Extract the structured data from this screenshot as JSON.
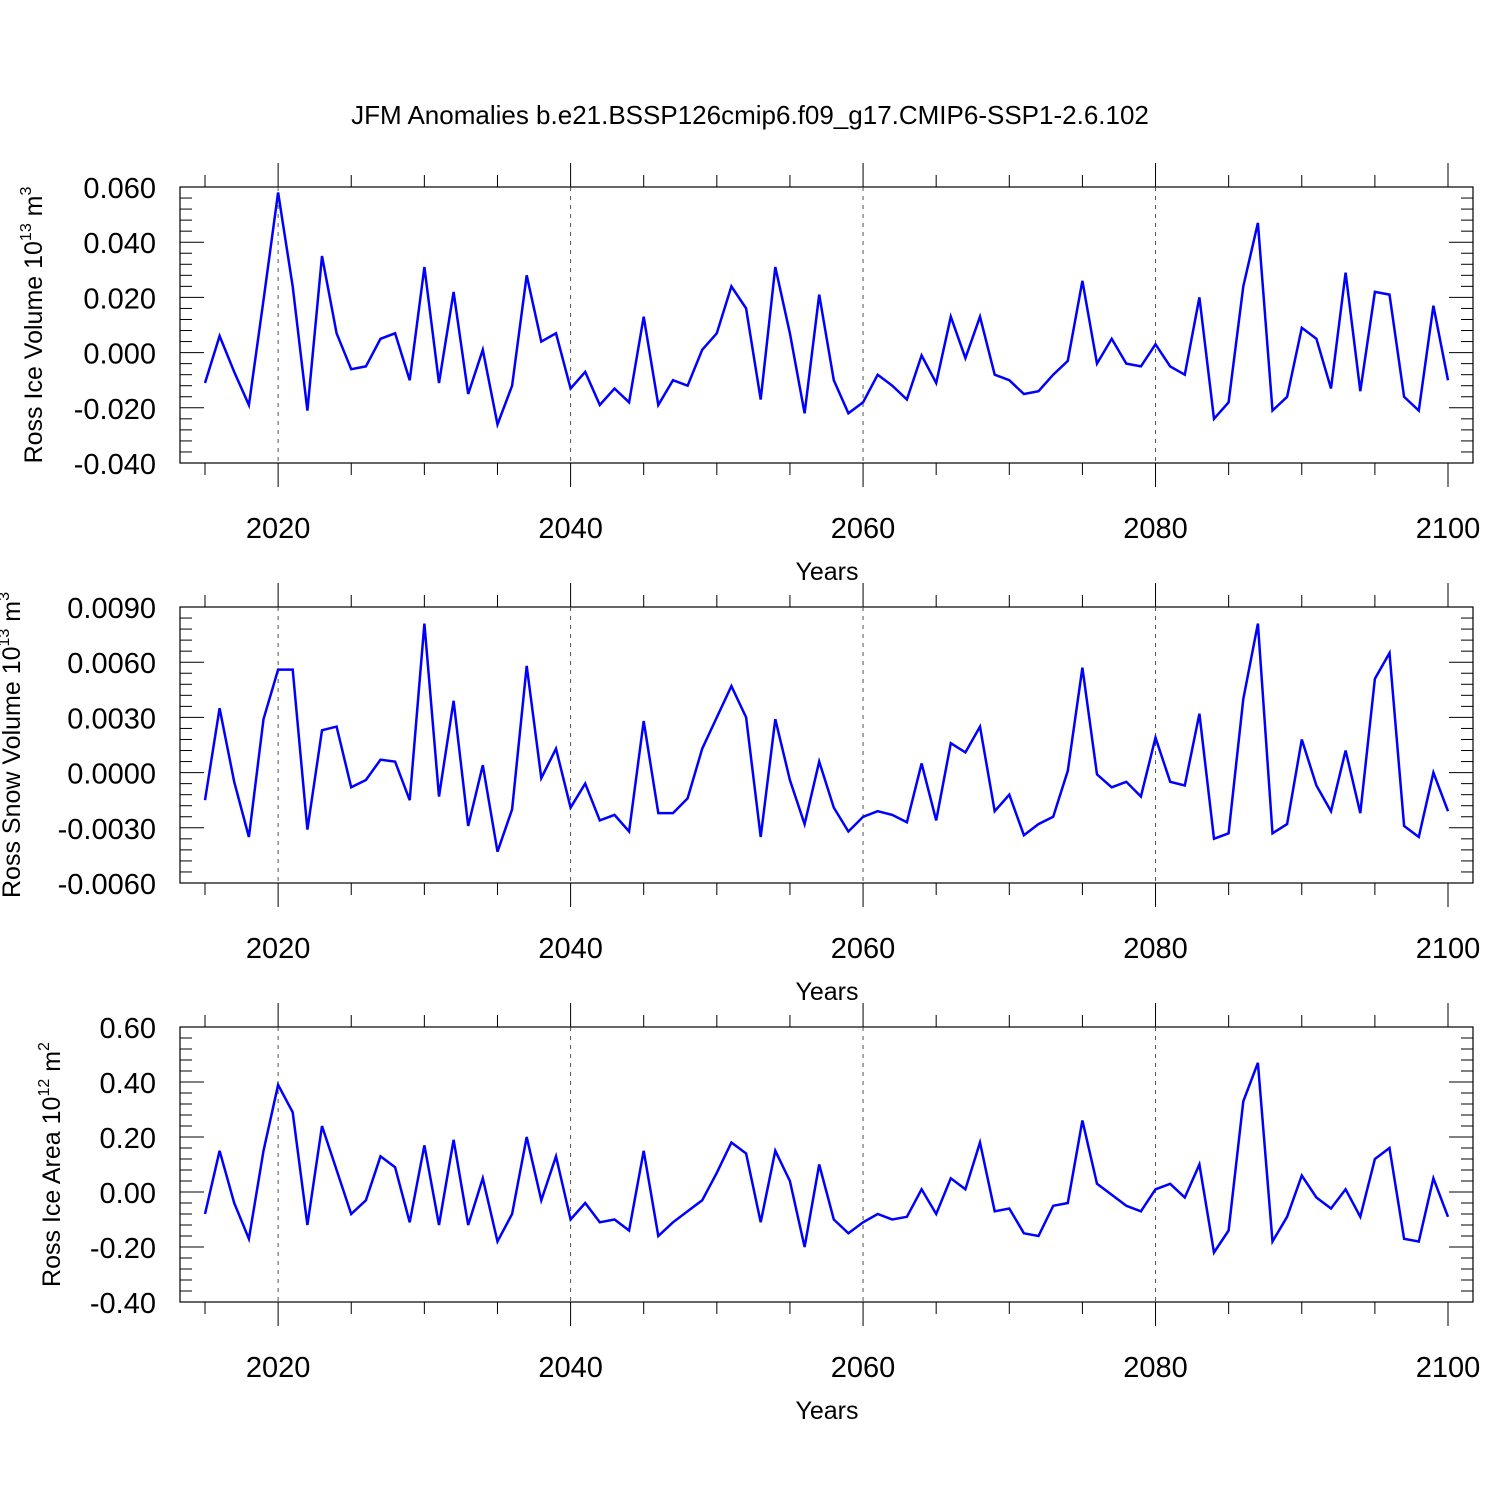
{
  "title": "JFM Anomalies b.e21.BSSP126cmip6.f09_g17.CMIP6-SSP1-2.6.102",
  "chart_data": [
    {
      "type": "line",
      "ylabel": {
        "base": "Ross Ice Volume 10",
        "exp": "13",
        "unit": " m",
        "unit_exp": "3"
      },
      "xlabel": "Years",
      "xlim": [
        2015,
        2100
      ],
      "ylim": [
        -0.04,
        0.06
      ],
      "y_ticks": [
        -0.04,
        -0.02,
        0.0,
        0.02,
        0.04,
        0.06
      ],
      "y_tick_labels": [
        "-0.040",
        "-0.020",
        "0.000",
        "0.020",
        "0.040",
        "0.060"
      ],
      "x_ticks": [
        2020,
        2040,
        2060,
        2080,
        2100
      ],
      "x_tick_labels": [
        "2020",
        "2040",
        "2060",
        "2080",
        "2100"
      ],
      "grid_x": [
        2020,
        2040,
        2060,
        2080
      ],
      "color": "#0000ff",
      "x_start": 2015,
      "values": [
        -0.011,
        0.006,
        -0.007,
        -0.019,
        0.019,
        0.058,
        0.024,
        -0.021,
        0.035,
        0.007,
        -0.006,
        -0.005,
        0.005,
        0.007,
        -0.01,
        0.031,
        -0.011,
        0.022,
        -0.015,
        0.001,
        -0.026,
        -0.012,
        0.028,
        0.004,
        0.007,
        -0.013,
        -0.007,
        -0.019,
        -0.013,
        -0.018,
        0.013,
        -0.019,
        -0.01,
        -0.012,
        0.001,
        0.007,
        0.024,
        0.016,
        -0.017,
        0.031,
        0.007,
        -0.022,
        0.021,
        -0.01,
        -0.022,
        -0.018,
        -0.008,
        -0.012,
        -0.017,
        -0.001,
        -0.011,
        0.013,
        -0.002,
        0.013,
        -0.008,
        -0.01,
        -0.015,
        -0.014,
        -0.008,
        -0.003,
        0.026,
        -0.004,
        0.005,
        -0.004,
        -0.005,
        0.003,
        -0.005,
        -0.008,
        0.02,
        -0.024,
        -0.018,
        0.024,
        0.047,
        -0.021,
        -0.016,
        0.009,
        0.005,
        -0.013,
        0.029,
        -0.014,
        0.022,
        0.021,
        -0.016,
        -0.021,
        0.017,
        -0.01
      ]
    },
    {
      "type": "line",
      "ylabel": {
        "base": "Ross Snow Volume 10",
        "exp": "13",
        "unit": " m",
        "unit_exp": "3"
      },
      "xlabel": "Years",
      "xlim": [
        2015,
        2100
      ],
      "ylim": [
        -0.006,
        0.009
      ],
      "y_ticks": [
        -0.006,
        -0.003,
        0.0,
        0.003,
        0.006,
        0.009
      ],
      "y_tick_labels": [
        "-0.0060",
        "-0.0030",
        "0.0000",
        "0.0030",
        "0.0060",
        "0.0090"
      ],
      "x_ticks": [
        2020,
        2040,
        2060,
        2080,
        2100
      ],
      "x_tick_labels": [
        "2020",
        "2040",
        "2060",
        "2080",
        "2100"
      ],
      "grid_x": [
        2020,
        2040,
        2060,
        2080
      ],
      "color": "#0000ff",
      "x_start": 2015,
      "values": [
        -0.0015,
        0.0035,
        -0.0005,
        -0.0035,
        0.0029,
        0.0056,
        0.0056,
        -0.0031,
        0.0023,
        0.0025,
        -0.0008,
        -0.0004,
        0.0007,
        0.0006,
        -0.0015,
        0.0081,
        -0.0013,
        0.0039,
        -0.0029,
        0.0004,
        -0.0043,
        -0.002,
        0.0058,
        -0.0003,
        0.0013,
        -0.0019,
        -0.0006,
        -0.0026,
        -0.0023,
        -0.0032,
        0.0028,
        -0.0022,
        -0.0022,
        -0.0014,
        0.0013,
        0.003,
        0.0047,
        0.003,
        -0.0035,
        0.0029,
        -0.0004,
        -0.0028,
        0.0006,
        -0.0019,
        -0.0032,
        -0.0024,
        -0.0021,
        -0.0023,
        -0.0027,
        0.0005,
        -0.0026,
        0.0016,
        0.0011,
        0.0025,
        -0.0021,
        -0.0012,
        -0.0034,
        -0.0028,
        -0.0024,
        0.0001,
        0.0057,
        -0.0001,
        -0.0008,
        -0.0005,
        -0.0013,
        0.0019,
        -0.0005,
        -0.0007,
        0.0032,
        -0.0036,
        -0.0033,
        0.004,
        0.0081,
        -0.0033,
        -0.0028,
        0.0018,
        -0.0007,
        -0.0021,
        0.0012,
        -0.0022,
        0.0051,
        0.0065,
        -0.0029,
        -0.0035,
        0.0,
        -0.0021
      ]
    },
    {
      "type": "line",
      "ylabel": {
        "base": "Ross Ice Area 10",
        "exp": "12",
        "unit": " m",
        "unit_exp": "2"
      },
      "xlabel": "Years",
      "xlim": [
        2015,
        2100
      ],
      "ylim": [
        -0.4,
        0.6
      ],
      "y_ticks": [
        -0.4,
        -0.2,
        0.0,
        0.2,
        0.4,
        0.6
      ],
      "y_tick_labels": [
        "-0.40",
        "-0.20",
        "0.00",
        "0.20",
        "0.40",
        "0.60"
      ],
      "x_ticks": [
        2020,
        2040,
        2060,
        2080,
        2100
      ],
      "x_tick_labels": [
        "2020",
        "2040",
        "2060",
        "2080",
        "2100"
      ],
      "grid_x": [
        2020,
        2040,
        2060,
        2080
      ],
      "color": "#0000ff",
      "x_start": 2015,
      "values": [
        -0.08,
        0.15,
        -0.04,
        -0.17,
        0.15,
        0.39,
        0.29,
        -0.12,
        0.24,
        0.08,
        -0.08,
        -0.03,
        0.13,
        0.09,
        -0.11,
        0.17,
        -0.12,
        0.19,
        -0.12,
        0.05,
        -0.18,
        -0.08,
        0.2,
        -0.03,
        0.13,
        -0.1,
        -0.04,
        -0.11,
        -0.1,
        -0.14,
        0.15,
        -0.16,
        -0.11,
        -0.07,
        -0.03,
        0.07,
        0.18,
        0.14,
        -0.11,
        0.15,
        0.04,
        -0.2,
        0.1,
        -0.1,
        -0.15,
        -0.11,
        -0.08,
        -0.1,
        -0.09,
        0.01,
        -0.08,
        0.05,
        0.01,
        0.18,
        -0.07,
        -0.06,
        -0.15,
        -0.16,
        -0.05,
        -0.04,
        0.26,
        0.03,
        -0.01,
        -0.05,
        -0.07,
        0.01,
        0.03,
        -0.02,
        0.1,
        -0.22,
        -0.14,
        0.33,
        0.47,
        -0.18,
        -0.09,
        0.06,
        -0.02,
        -0.06,
        0.01,
        -0.09,
        0.12,
        0.16,
        -0.17,
        -0.18,
        0.05,
        -0.09
      ]
    }
  ]
}
